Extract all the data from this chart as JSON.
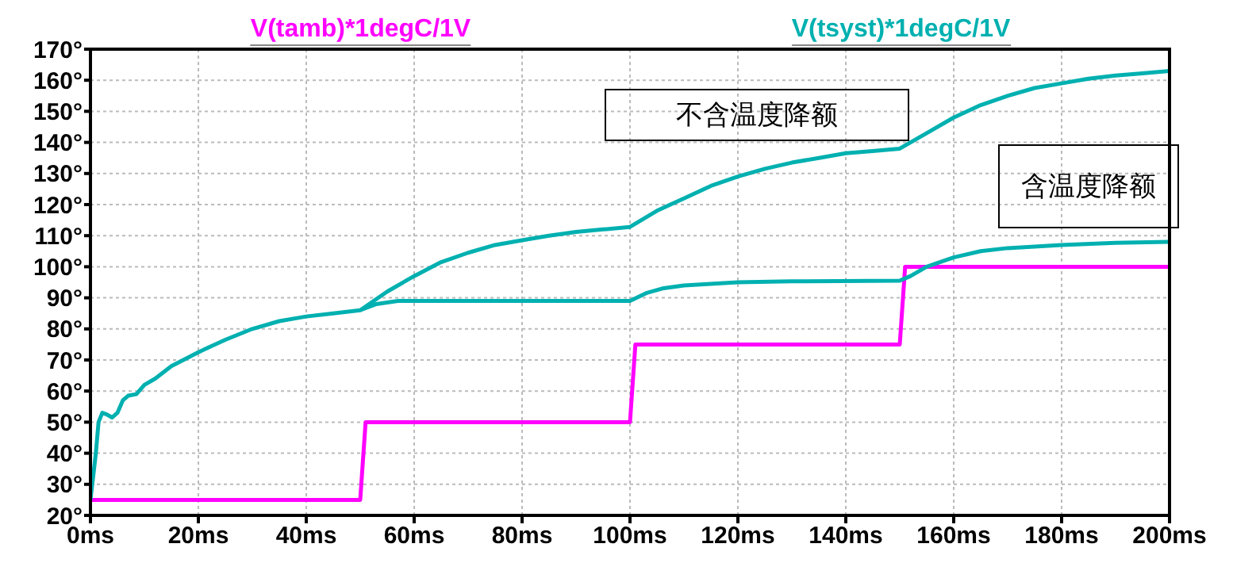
{
  "chart_data": {
    "type": "line",
    "legend": "top",
    "grid": true,
    "marker": "none",
    "line_style": "solid",
    "xlim": [
      0,
      200
    ],
    "xticks": [
      {
        "value": 0,
        "label": "0ms"
      },
      {
        "value": 20,
        "label": "20ms"
      },
      {
        "value": 40,
        "label": "40ms"
      },
      {
        "value": 60,
        "label": "60ms"
      },
      {
        "value": 80,
        "label": "80ms"
      },
      {
        "value": 100,
        "label": "100ms"
      },
      {
        "value": 120,
        "label": "120ms"
      },
      {
        "value": 140,
        "label": "140ms"
      },
      {
        "value": 160,
        "label": "160ms"
      },
      {
        "value": 180,
        "label": "180ms"
      },
      {
        "value": 200,
        "label": "200ms"
      }
    ],
    "ylim": [
      20,
      170
    ],
    "yticks": [
      {
        "value": 20,
        "label": "20°"
      },
      {
        "value": 30,
        "label": "30°"
      },
      {
        "value": 40,
        "label": "40°"
      },
      {
        "value": 50,
        "label": "50°"
      },
      {
        "value": 60,
        "label": "60°"
      },
      {
        "value": 70,
        "label": "70°"
      },
      {
        "value": 80,
        "label": "80°"
      },
      {
        "value": 90,
        "label": "90°"
      },
      {
        "value": 100,
        "label": "100°"
      },
      {
        "value": 110,
        "label": "110°"
      },
      {
        "value": 120,
        "label": "120°"
      },
      {
        "value": 130,
        "label": "130°"
      },
      {
        "value": 140,
        "label": "140°"
      },
      {
        "value": 150,
        "label": "150°"
      },
      {
        "value": 160,
        "label": "160°"
      },
      {
        "value": 170,
        "label": "170°"
      }
    ],
    "annotations": [
      "不含温度降额",
      "含温度降额"
    ],
    "series": [
      {
        "name": "V(tamb)*1degC/1V",
        "color": "#ff00ff",
        "x": [
          0,
          50,
          51,
          100,
          101,
          150,
          151,
          200
        ],
        "values": [
          25,
          25,
          50,
          50,
          75,
          75,
          100,
          100
        ]
      },
      {
        "name": "V(tsyst)*1degC/1V",
        "color": "#00b0b0",
        "x": [
          0,
          1,
          1.5,
          2.2,
          3,
          4,
          5,
          6,
          7,
          8.5,
          10,
          12,
          15,
          20,
          25,
          30,
          35,
          40,
          45,
          50,
          55,
          60,
          65,
          70,
          75,
          80,
          85,
          90,
          95,
          100,
          105,
          110,
          115,
          120,
          125,
          130,
          135,
          140,
          145,
          150,
          155,
          160,
          165,
          170,
          175,
          180,
          185,
          190,
          195,
          200
        ],
        "values": [
          25,
          40,
          50,
          53,
          52.5,
          51.5,
          53,
          57,
          58.5,
          59,
          62,
          64,
          68,
          72.5,
          76.5,
          80,
          82.5,
          84,
          85,
          86,
          92,
          97,
          101.5,
          104.5,
          107,
          108.5,
          110,
          111.2,
          112,
          112.8,
          118,
          122,
          126,
          129,
          131.5,
          133.5,
          135,
          136.5,
          137.2,
          138,
          143,
          148,
          152,
          155,
          157.5,
          159,
          160.5,
          161.5,
          162.2,
          163
        ]
      },
      {
        "color": "#00b0b0",
        "x": [
          50,
          53,
          57,
          60,
          100,
          103,
          106,
          110,
          120,
          130,
          150,
          152,
          155,
          160,
          165,
          170,
          180,
          190,
          200
        ],
        "values": [
          86,
          88,
          89,
          89,
          89,
          91.5,
          93,
          94,
          95,
          95.3,
          95.5,
          97,
          100,
          103,
          105,
          106,
          107,
          107.7,
          108
        ]
      }
    ]
  }
}
